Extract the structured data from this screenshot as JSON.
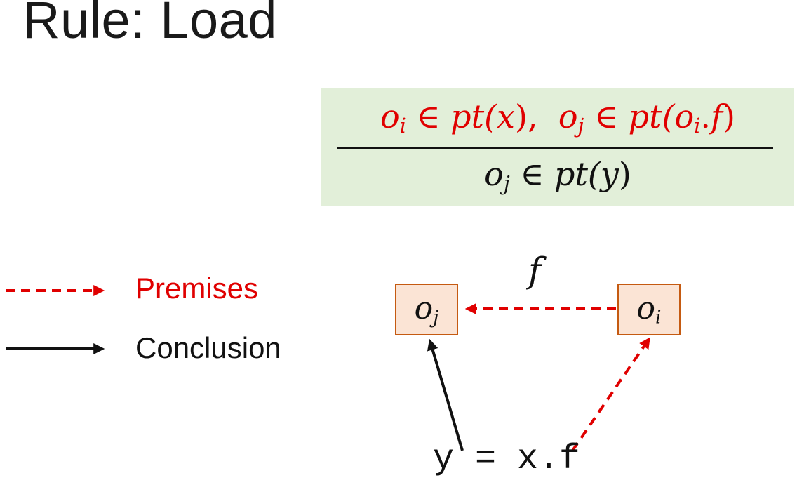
{
  "title": "Rule: Load",
  "rule": {
    "premise": {
      "o1": "o",
      "o1_sub": "i",
      "in1": " ∈ ",
      "pt1": "pt(",
      "var1": "x",
      "close1": "),",
      "o2": "o",
      "o2_sub": "j",
      "in2": " ∈ ",
      "pt2": "pt(",
      "o3": "o",
      "o3_sub": "i",
      "dot": ".",
      "field": "f",
      "close2": ")"
    },
    "conclusion": {
      "o": "o",
      "o_sub": "j",
      "in": " ∈ ",
      "pt": "pt(",
      "var": "y",
      "close": ")"
    }
  },
  "legend": {
    "premises_label": "Premises",
    "conclusion_label": "Conclusion"
  },
  "diagram": {
    "obj_j": {
      "base": "o",
      "sub": "j"
    },
    "obj_i": {
      "base": "o",
      "sub": "i"
    },
    "field_label": "f",
    "statement": "y = x.f"
  },
  "colors": {
    "premise": "#e00000",
    "conclusion": "#111111",
    "rule_box_bg": "#e2efd9",
    "object_box_bg": "#fbe4d5",
    "object_box_border": "#c55a11"
  }
}
